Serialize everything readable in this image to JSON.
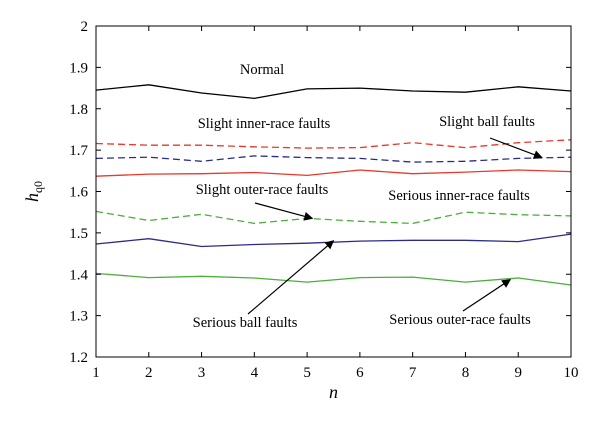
{
  "chart_data": {
    "type": "line",
    "title": "",
    "xlabel": "n",
    "ylabel": {
      "main": "h",
      "sub": "q0"
    },
    "xlim": [
      1,
      10
    ],
    "ylim": [
      1.2,
      2
    ],
    "x_ticks": [
      "1",
      "2",
      "3",
      "4",
      "5",
      "6",
      "7",
      "8",
      "9",
      "10"
    ],
    "y_ticks": [
      "1.2",
      "1.3",
      "1.4",
      "1.5",
      "1.6",
      "1.7",
      "1.8",
      "1.9",
      "2"
    ],
    "grid": false,
    "legend": "none",
    "x": [
      1,
      2,
      3,
      4,
      5,
      6,
      7,
      8,
      9,
      10
    ],
    "series": [
      {
        "name": "Normal",
        "color": "#000000",
        "dash": "solid",
        "values": [
          1.845,
          1.858,
          1.838,
          1.825,
          1.848,
          1.85,
          1.843,
          1.84,
          1.853,
          1.843
        ]
      },
      {
        "name": "Slight inner-race faults",
        "color": "#e8392a",
        "dash": "dashed",
        "values": [
          1.716,
          1.712,
          1.712,
          1.708,
          1.705,
          1.706,
          1.718,
          1.706,
          1.718,
          1.725
        ]
      },
      {
        "name": "Slight ball faults",
        "color": "#2c2c86",
        "dash": "dashed",
        "values": [
          1.68,
          1.683,
          1.673,
          1.686,
          1.682,
          1.68,
          1.671,
          1.673,
          1.68,
          1.683
        ]
      },
      {
        "name": "Serious inner-race faults",
        "color": "#e8392a",
        "dash": "solid",
        "values": [
          1.637,
          1.642,
          1.643,
          1.646,
          1.639,
          1.652,
          1.643,
          1.647,
          1.652,
          1.648
        ]
      },
      {
        "name": "Slight outer-race faults",
        "color": "#4cae3c",
        "dash": "dashed",
        "values": [
          1.552,
          1.53,
          1.545,
          1.523,
          1.535,
          1.528,
          1.523,
          1.55,
          1.544,
          1.541
        ]
      },
      {
        "name": "Serious ball faults",
        "color": "#2c2c86",
        "dash": "solid",
        "values": [
          1.473,
          1.486,
          1.467,
          1.472,
          1.475,
          1.48,
          1.482,
          1.482,
          1.479,
          1.497
        ]
      },
      {
        "name": "Serious outer-race faults",
        "color": "#4cae3c",
        "dash": "solid",
        "values": [
          1.402,
          1.392,
          1.395,
          1.391,
          1.381,
          1.392,
          1.393,
          1.381,
          1.391,
          1.374
        ]
      }
    ],
    "annotations": [
      {
        "id": "normal",
        "text": "Normal",
        "arrow": false
      },
      {
        "id": "slight-inner",
        "text": "Slight inner-race faults",
        "arrow": false
      },
      {
        "id": "slight-ball",
        "text": "Slight ball faults",
        "arrow": true,
        "arrow_to": [
          9.45,
          1.682
        ]
      },
      {
        "id": "serious-inner",
        "text": "Serious inner-race faults",
        "arrow": false
      },
      {
        "id": "slight-outer",
        "text": "Slight outer-race faults",
        "arrow": true,
        "arrow_to": [
          5.1,
          1.535
        ]
      },
      {
        "id": "serious-ball",
        "text": "Serious ball faults",
        "arrow": true,
        "arrow_to": [
          5.5,
          1.481
        ]
      },
      {
        "id": "serious-outer",
        "text": "Serious outer-race faults",
        "arrow": true,
        "arrow_to": [
          8.85,
          1.387
        ]
      }
    ]
  }
}
